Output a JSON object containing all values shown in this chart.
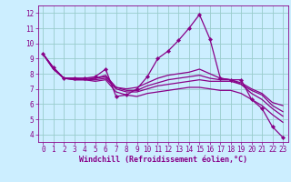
{
  "xlabel": "Windchill (Refroidissement éolien,°C)",
  "bg_color": "#cceeff",
  "line_color": "#880088",
  "grid_color": "#99cccc",
  "xlim": [
    -0.5,
    23.5
  ],
  "ylim": [
    3.5,
    12.5
  ],
  "yticks": [
    4,
    5,
    6,
    7,
    8,
    9,
    10,
    11,
    12
  ],
  "xticks": [
    0,
    1,
    2,
    3,
    4,
    5,
    6,
    7,
    8,
    9,
    10,
    11,
    12,
    13,
    14,
    15,
    16,
    17,
    18,
    19,
    20,
    21,
    22,
    23
  ],
  "lines": [
    {
      "x": [
        0,
        1,
        2,
        3,
        4,
        5,
        6,
        7,
        8,
        9,
        10,
        11,
        12,
        13,
        14,
        15,
        16,
        17,
        18,
        19,
        20,
        21,
        22,
        23
      ],
      "y": [
        9.3,
        8.4,
        7.7,
        7.7,
        7.7,
        7.8,
        8.3,
        6.5,
        6.6,
        7.0,
        7.8,
        9.0,
        9.5,
        10.2,
        11.0,
        11.9,
        10.3,
        7.7,
        7.6,
        7.6,
        6.3,
        5.7,
        4.5,
        3.8
      ],
      "marker": true
    },
    {
      "x": [
        0,
        1,
        2,
        3,
        4,
        5,
        6,
        7,
        8,
        9,
        10,
        11,
        12,
        13,
        14,
        15,
        16,
        17,
        18,
        19,
        20,
        21,
        22,
        23
      ],
      "y": [
        9.3,
        8.4,
        7.7,
        7.7,
        7.7,
        7.7,
        7.9,
        7.1,
        7.0,
        7.1,
        7.4,
        7.7,
        7.9,
        8.0,
        8.1,
        8.3,
        8.0,
        7.7,
        7.6,
        7.4,
        7.0,
        6.7,
        6.1,
        5.9
      ],
      "marker": false
    },
    {
      "x": [
        0,
        1,
        2,
        3,
        4,
        5,
        6,
        7,
        8,
        9,
        10,
        11,
        12,
        13,
        14,
        15,
        16,
        17,
        18,
        19,
        20,
        21,
        22,
        23
      ],
      "y": [
        9.3,
        8.3,
        7.7,
        7.7,
        7.6,
        7.7,
        7.8,
        7.1,
        6.9,
        6.9,
        7.2,
        7.4,
        7.6,
        7.7,
        7.8,
        7.9,
        7.7,
        7.6,
        7.6,
        7.3,
        6.9,
        6.6,
        5.9,
        5.5
      ],
      "marker": false
    },
    {
      "x": [
        0,
        1,
        2,
        3,
        4,
        5,
        6,
        7,
        8,
        9,
        10,
        11,
        12,
        13,
        14,
        15,
        16,
        17,
        18,
        19,
        20,
        21,
        22,
        23
      ],
      "y": [
        9.3,
        8.3,
        7.7,
        7.6,
        7.6,
        7.6,
        7.7,
        7.0,
        6.8,
        6.8,
        7.0,
        7.2,
        7.3,
        7.4,
        7.5,
        7.6,
        7.5,
        7.5,
        7.5,
        7.3,
        6.7,
        6.3,
        5.7,
        5.2
      ],
      "marker": false
    },
    {
      "x": [
        0,
        1,
        2,
        3,
        4,
        5,
        6,
        7,
        8,
        9,
        10,
        11,
        12,
        13,
        14,
        15,
        16,
        17,
        18,
        19,
        20,
        21,
        22,
        23
      ],
      "y": [
        9.3,
        8.3,
        7.7,
        7.6,
        7.6,
        7.5,
        7.6,
        6.8,
        6.6,
        6.5,
        6.7,
        6.8,
        6.9,
        7.0,
        7.1,
        7.1,
        7.0,
        6.9,
        6.9,
        6.7,
        6.3,
        5.9,
        5.3,
        4.8
      ],
      "marker": false
    }
  ],
  "tick_fontsize": 5.5,
  "xlabel_fontsize": 6.0
}
